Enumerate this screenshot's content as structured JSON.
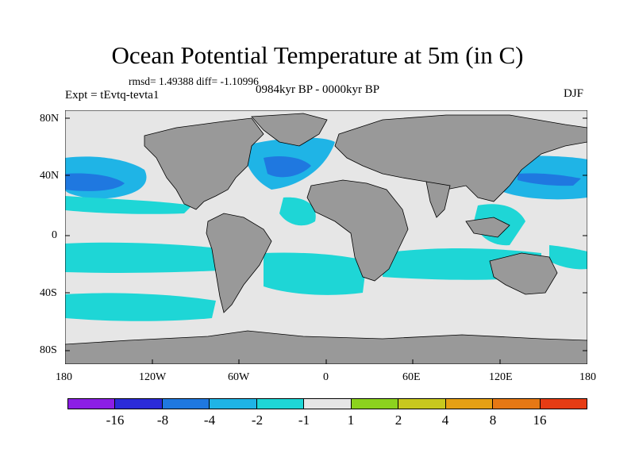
{
  "title": "Ocean Potential Temperature at 5m (in C)",
  "stats": "rmsd= 1.49388 diff= -1.10996",
  "experiment": "Expt = tEvtq-tevta1",
  "period": "0984kyr BP - 0000kyr BP",
  "season": "DJF",
  "lat_ticks": [
    "80N",
    "40N",
    "0",
    "40S",
    "80S"
  ],
  "lon_ticks": [
    "180",
    "120W",
    "60W",
    "0",
    "60E",
    "120E",
    "180"
  ],
  "colorbar": {
    "colors": [
      "#8c1ee6",
      "#2b2bd8",
      "#1f78e0",
      "#1fb4e6",
      "#1ed6d6",
      "#e6e6e6",
      "#8cd21e",
      "#c8c81e",
      "#e6a014",
      "#e67814",
      "#e63c14"
    ],
    "labels": [
      "-16",
      "-8",
      "-4",
      "-2",
      "-1",
      "1",
      "2",
      "4",
      "8",
      "16"
    ]
  },
  "colors": {
    "land": "#999999",
    "neutral": "#e6e6e6",
    "cool_light": "#1ed6d6",
    "cool_mid": "#1fb4e6",
    "cool_strong": "#1f78e0",
    "cool_max": "#2b2bd8"
  }
}
